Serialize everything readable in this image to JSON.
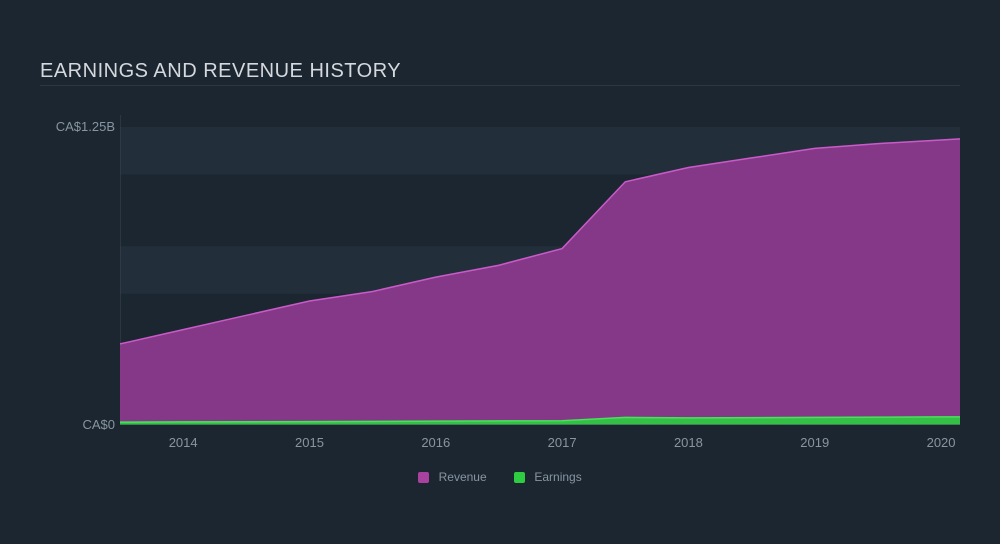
{
  "chart": {
    "type": "area",
    "title": "EARNINGS AND REVENUE HISTORY",
    "background_color": "#1b2631",
    "title_color": "#d5d8dc",
    "title_fontsize": 20,
    "axis_color": "#8895a0",
    "axis_fontsize": 13,
    "grid_band_color": "#222e3a",
    "x": {
      "ticks": [
        2014,
        2015,
        2016,
        2017,
        2018,
        2019,
        2020
      ],
      "min": 2013.5,
      "max": 2020.15
    },
    "y": {
      "tick_labels": [
        "CA$0",
        "CA$1.25B"
      ],
      "tick_values": [
        0,
        1.25
      ],
      "min": 0,
      "max": 1.3
    },
    "series": [
      {
        "name": "Revenue",
        "legend_label": "Revenue",
        "color_fill": "#8e3a8e",
        "color_stroke": "#c95bc9",
        "swatch_color": "#a8429e",
        "points": [
          {
            "x": 2013.5,
            "y": 0.34
          },
          {
            "x": 2014.0,
            "y": 0.4
          },
          {
            "x": 2014.5,
            "y": 0.46
          },
          {
            "x": 2015.0,
            "y": 0.52
          },
          {
            "x": 2015.5,
            "y": 0.56
          },
          {
            "x": 2016.0,
            "y": 0.62
          },
          {
            "x": 2016.5,
            "y": 0.67
          },
          {
            "x": 2017.0,
            "y": 0.74
          },
          {
            "x": 2017.5,
            "y": 1.02
          },
          {
            "x": 2018.0,
            "y": 1.08
          },
          {
            "x": 2018.5,
            "y": 1.12
          },
          {
            "x": 2019.0,
            "y": 1.16
          },
          {
            "x": 2019.5,
            "y": 1.18
          },
          {
            "x": 2020.0,
            "y": 1.195
          },
          {
            "x": 2020.15,
            "y": 1.2
          }
        ]
      },
      {
        "name": "Earnings",
        "legend_label": "Earnings",
        "color_fill": "#2ecc40",
        "color_stroke": "#47e35a",
        "swatch_color": "#2ecc40",
        "points": [
          {
            "x": 2013.5,
            "y": 0.012
          },
          {
            "x": 2014.0,
            "y": 0.013
          },
          {
            "x": 2015.0,
            "y": 0.014
          },
          {
            "x": 2016.0,
            "y": 0.016
          },
          {
            "x": 2017.0,
            "y": 0.018
          },
          {
            "x": 2017.5,
            "y": 0.032
          },
          {
            "x": 2018.0,
            "y": 0.03
          },
          {
            "x": 2019.0,
            "y": 0.032
          },
          {
            "x": 2020.0,
            "y": 0.034
          },
          {
            "x": 2020.15,
            "y": 0.034
          }
        ]
      }
    ],
    "legend": {
      "fontsize": 12,
      "color": "#8895a0"
    }
  }
}
